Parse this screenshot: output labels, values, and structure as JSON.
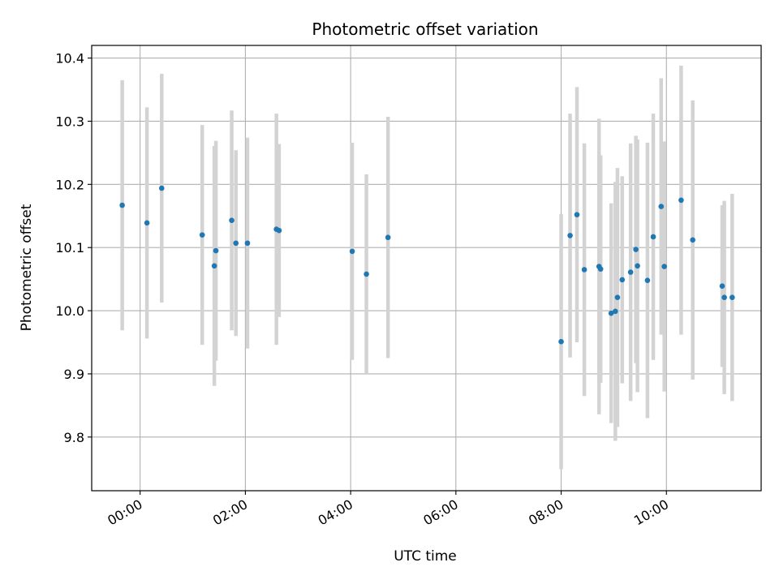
{
  "chart_data": {
    "type": "scatter",
    "title": "Photometric offset variation",
    "xlabel": "UTC time",
    "ylabel": "Photometric offset",
    "x_unit": "hours",
    "xlim": [
      -0.92,
      11.8
    ],
    "ylim": [
      9.715,
      10.42
    ],
    "x_ticks": [
      0,
      2,
      4,
      6,
      8,
      10
    ],
    "x_tick_labels": [
      "00:00",
      "02:00",
      "04:00",
      "06:00",
      "08:00",
      "10:00"
    ],
    "y_ticks": [
      9.8,
      9.9,
      10.0,
      10.1,
      10.2,
      10.3,
      10.4
    ],
    "y_tick_labels": [
      "9.8",
      "9.9",
      "10.0",
      "10.1",
      "10.2",
      "10.3",
      "10.4"
    ],
    "grid": true,
    "colors": {
      "point": "#1f77b4",
      "errorbar": "#d3d3d3",
      "grid": "#b0b0b0"
    },
    "series": [
      {
        "values": [
          {
            "x": -0.34,
            "y": 10.167,
            "yerr": 0.198
          },
          {
            "x": 0.13,
            "y": 10.139,
            "yerr": 0.183
          },
          {
            "x": 0.41,
            "y": 10.194,
            "yerr": 0.181
          },
          {
            "x": 1.18,
            "y": 10.12,
            "yerr": 0.174
          },
          {
            "x": 1.41,
            "y": 10.071,
            "yerr": 0.19
          },
          {
            "x": 1.44,
            "y": 10.095,
            "yerr": 0.174
          },
          {
            "x": 1.74,
            "y": 10.143,
            "yerr": 0.174
          },
          {
            "x": 1.82,
            "y": 10.107,
            "yerr": 0.147
          },
          {
            "x": 2.04,
            "y": 10.107,
            "yerr": 0.167
          },
          {
            "x": 2.59,
            "y": 10.129,
            "yerr": 0.183
          },
          {
            "x": 2.64,
            "y": 10.127,
            "yerr": 0.137
          },
          {
            "x": 4.03,
            "y": 10.094,
            "yerr": 0.172
          },
          {
            "x": 4.3,
            "y": 10.058,
            "yerr": 0.158
          },
          {
            "x": 4.71,
            "y": 10.116,
            "yerr": 0.191
          },
          {
            "x": 8.0,
            "y": 9.951,
            "yerr": 0.202
          },
          {
            "x": 8.17,
            "y": 10.119,
            "yerr": 0.193
          },
          {
            "x": 8.3,
            "y": 10.152,
            "yerr": 0.202
          },
          {
            "x": 8.44,
            "y": 10.065,
            "yerr": 0.2
          },
          {
            "x": 8.72,
            "y": 10.07,
            "yerr": 0.234
          },
          {
            "x": 8.75,
            "y": 10.066,
            "yerr": 0.18
          },
          {
            "x": 8.95,
            "y": 9.996,
            "yerr": 0.174
          },
          {
            "x": 9.03,
            "y": 9.999,
            "yerr": 0.205
          },
          {
            "x": 9.07,
            "y": 10.021,
            "yerr": 0.205
          },
          {
            "x": 9.16,
            "y": 10.049,
            "yerr": 0.164
          },
          {
            "x": 9.32,
            "y": 10.061,
            "yerr": 0.204
          },
          {
            "x": 9.42,
            "y": 10.097,
            "yerr": 0.18
          },
          {
            "x": 9.45,
            "y": 10.071,
            "yerr": 0.2
          },
          {
            "x": 9.64,
            "y": 10.048,
            "yerr": 0.218
          },
          {
            "x": 9.75,
            "y": 10.117,
            "yerr": 0.195
          },
          {
            "x": 9.9,
            "y": 10.165,
            "yerr": 0.203
          },
          {
            "x": 9.96,
            "y": 10.07,
            "yerr": 0.198
          },
          {
            "x": 10.28,
            "y": 10.175,
            "yerr": 0.213
          },
          {
            "x": 10.5,
            "y": 10.112,
            "yerr": 0.221
          },
          {
            "x": 11.06,
            "y": 10.039,
            "yerr": 0.128
          },
          {
            "x": 11.1,
            "y": 10.021,
            "yerr": 0.153
          },
          {
            "x": 11.25,
            "y": 10.021,
            "yerr": 0.164
          }
        ]
      }
    ]
  }
}
